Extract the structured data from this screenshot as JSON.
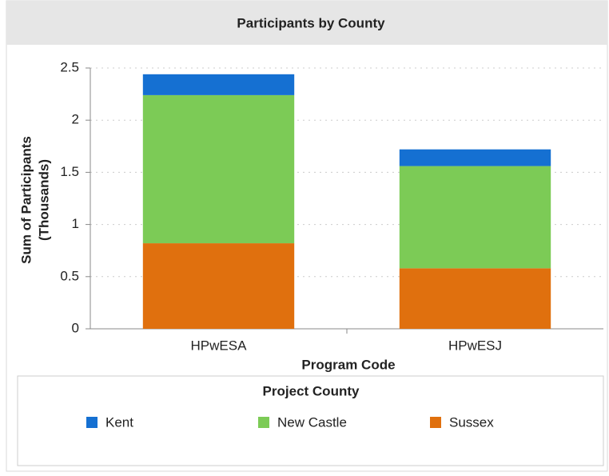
{
  "chart_data": {
    "type": "stacked_bar",
    "title": "Participants by County",
    "categories": [
      "HPwESA",
      "HPwESJ"
    ],
    "series": [
      {
        "name": "Kent",
        "color": "#1570d2",
        "values": [
          0.2,
          0.16
        ]
      },
      {
        "name": "New Castle",
        "color": "#7ccb56",
        "values": [
          1.42,
          0.98
        ]
      },
      {
        "name": "Sussex",
        "color": "#e0700e",
        "values": [
          0.82,
          0.58
        ]
      }
    ],
    "ylim": [
      0,
      2.5
    ],
    "yticks": [
      0,
      0.5,
      1,
      1.5,
      2,
      2.5
    ],
    "grid": true,
    "xlabel": "Program Code",
    "ylabel": [
      "Sum of Participants",
      "(Thousands)"
    ],
    "legend_title": "Project County",
    "legend_position": "bottom"
  }
}
